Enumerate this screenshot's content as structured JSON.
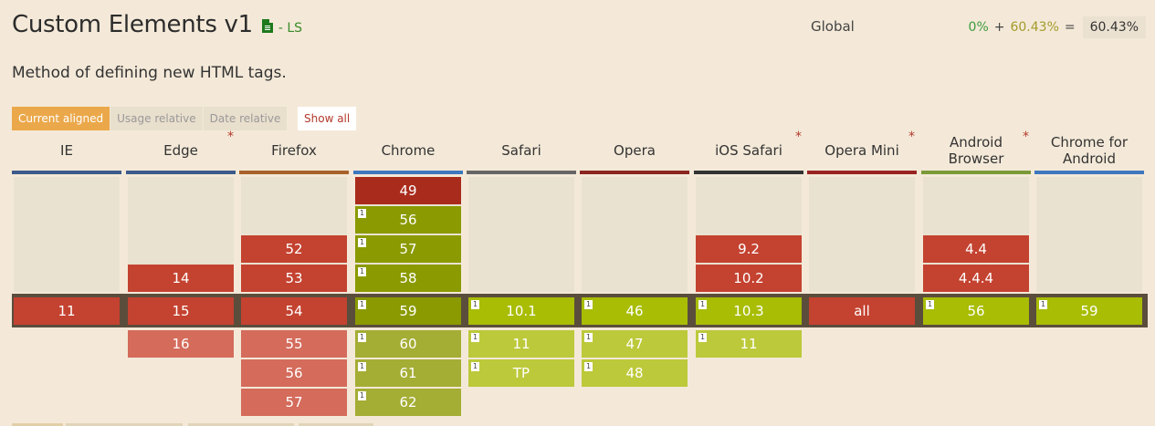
{
  "header": {
    "title": "Custom Elements v1",
    "spec_icon": "document-icon",
    "spec_status": "- LS",
    "description": "Method of defining new HTML tags."
  },
  "usage": {
    "region": "Global",
    "full": "0%",
    "plus": "+",
    "partial": "60.43%",
    "equals": "=",
    "total": "60.43%"
  },
  "view_tabs": [
    {
      "label": "Current aligned",
      "active": true
    },
    {
      "label": "Usage relative",
      "active": false
    },
    {
      "label": "Date relative",
      "active": false
    }
  ],
  "show_all_label": "Show all",
  "colors": {
    "not_supported": "#c44230",
    "not_supported_old": "#a92b1c",
    "partial_supported": "#a8bd04",
    "current_row_band": "#5b4d3c",
    "accent_tab": "#eba84a"
  },
  "browsers": [
    {
      "name": "IE",
      "asterisk": false,
      "bar_color": "#3d5a8a",
      "past": [],
      "current": {
        "v": "11",
        "s": "n",
        "note": ""
      },
      "future": []
    },
    {
      "name": "Edge",
      "asterisk": true,
      "bar_color": "#3d5a8a",
      "past": [
        {
          "v": "14",
          "s": "n",
          "note": ""
        }
      ],
      "current": {
        "v": "15",
        "s": "n",
        "note": ""
      },
      "future": [
        {
          "v": "16",
          "s": "n",
          "note": ""
        }
      ]
    },
    {
      "name": "Firefox",
      "asterisk": false,
      "bar_color": "#a8612a",
      "past": [
        {
          "v": "52",
          "s": "n",
          "note": ""
        },
        {
          "v": "53",
          "s": "n",
          "note": ""
        }
      ],
      "current": {
        "v": "54",
        "s": "n",
        "note": ""
      },
      "future": [
        {
          "v": "55",
          "s": "n",
          "note": ""
        },
        {
          "v": "56",
          "s": "n",
          "note": ""
        },
        {
          "v": "57",
          "s": "n",
          "note": ""
        }
      ]
    },
    {
      "name": "Chrome",
      "asterisk": false,
      "bar_color": "#3e78bf",
      "past": [
        {
          "v": "49",
          "s": "n",
          "note": ""
        },
        {
          "v": "56",
          "s": "y",
          "note": "1"
        },
        {
          "v": "57",
          "s": "y",
          "note": "1"
        },
        {
          "v": "58",
          "s": "y",
          "note": "1"
        }
      ],
      "current": {
        "v": "59",
        "s": "y",
        "note": "1"
      },
      "future": [
        {
          "v": "60",
          "s": "y",
          "note": "1"
        },
        {
          "v": "61",
          "s": "y",
          "note": "1"
        },
        {
          "v": "62",
          "s": "y",
          "note": "1"
        }
      ]
    },
    {
      "name": "Safari",
      "asterisk": false,
      "bar_color": "#666666",
      "past": [],
      "current": {
        "v": "10.1",
        "s": "y",
        "note": "1"
      },
      "future": [
        {
          "v": "11",
          "s": "y",
          "note": "1"
        },
        {
          "v": "TP",
          "s": "y",
          "note": "1"
        }
      ]
    },
    {
      "name": "Opera",
      "asterisk": false,
      "bar_color": "#8a2520",
      "past": [],
      "current": {
        "v": "46",
        "s": "y",
        "note": "1"
      },
      "future": [
        {
          "v": "47",
          "s": "y",
          "note": "1"
        },
        {
          "v": "48",
          "s": "y",
          "note": "1"
        }
      ]
    },
    {
      "name": "iOS Safari",
      "asterisk": true,
      "bar_color": "#333333",
      "past": [
        {
          "v": "9.2",
          "s": "n",
          "note": ""
        },
        {
          "v": "10.2",
          "s": "n",
          "note": ""
        }
      ],
      "current": {
        "v": "10.3",
        "s": "y",
        "note": "1"
      },
      "future": [
        {
          "v": "11",
          "s": "y",
          "note": "1"
        }
      ]
    },
    {
      "name": "Opera Mini",
      "asterisk": true,
      "bar_color": "#992222",
      "past": [],
      "current": {
        "v": "all",
        "s": "n",
        "note": ""
      },
      "future": []
    },
    {
      "name": "Android Browser",
      "asterisk": true,
      "bar_color": "#7a9a38",
      "past": [
        {
          "v": "4.4",
          "s": "n",
          "note": ""
        },
        {
          "v": "4.4.4",
          "s": "n",
          "note": ""
        }
      ],
      "current": {
        "v": "56",
        "s": "y",
        "note": "1"
      },
      "future": []
    },
    {
      "name": "Chrome for Android",
      "asterisk": false,
      "bar_color": "#3e78bf",
      "past": [],
      "current": {
        "v": "59",
        "s": "y",
        "note": "1"
      },
      "future": []
    }
  ]
}
